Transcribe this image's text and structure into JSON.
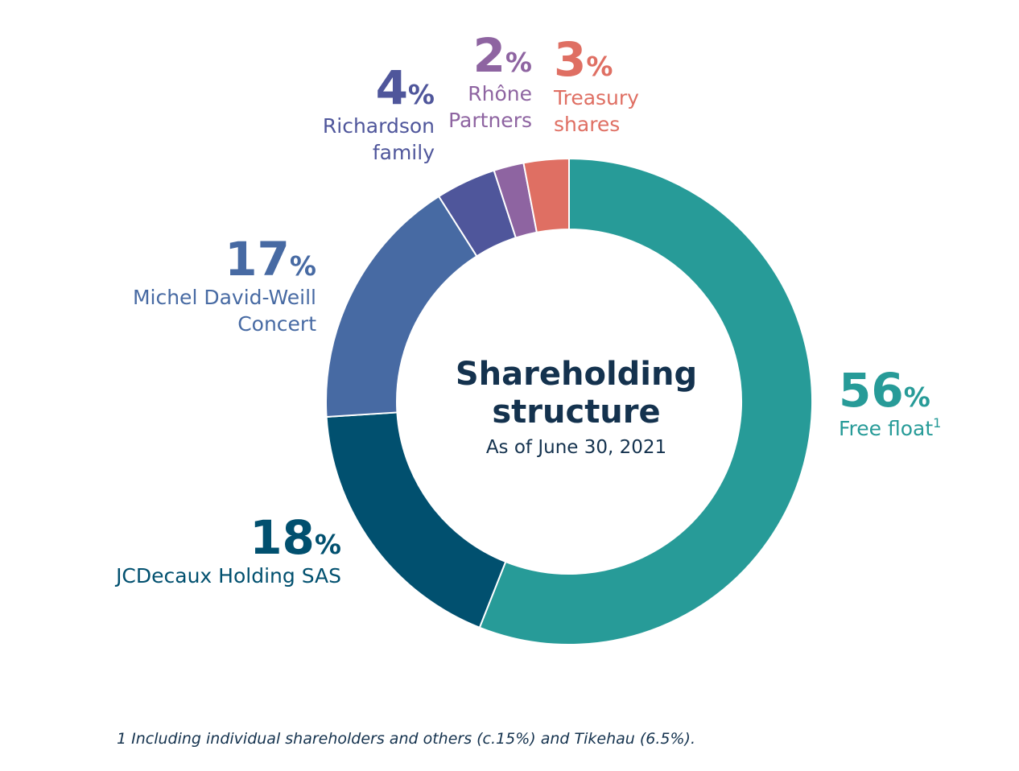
{
  "chart_data": {
    "type": "pie",
    "title": "Shareholding structure",
    "subtitle": "As of June 30, 2021",
    "slices": [
      {
        "value": 56,
        "pct_number": "56",
        "pct_sign": "%",
        "label_lines": [
          "Free float"
        ],
        "superscript": "1",
        "color": "#279b98"
      },
      {
        "value": 18,
        "pct_number": "18",
        "pct_sign": "%",
        "label_lines": [
          "JCDecaux Holding SAS"
        ],
        "superscript": "",
        "color": "#01506f"
      },
      {
        "value": 17,
        "pct_number": "17",
        "pct_sign": "%",
        "label_lines": [
          "Michel David-Weill",
          "Concert"
        ],
        "superscript": "",
        "color": "#476aa3"
      },
      {
        "value": 4,
        "pct_number": "4",
        "pct_sign": "%",
        "label_lines": [
          "Richardson",
          "family"
        ],
        "superscript": "",
        "color": "#4f569b"
      },
      {
        "value": 2,
        "pct_number": "2",
        "pct_sign": "%",
        "label_lines": [
          "Rhône",
          "Partners"
        ],
        "superscript": "",
        "color": "#8e64a1"
      },
      {
        "value": 3,
        "pct_number": "3",
        "pct_sign": "%",
        "label_lines": [
          "Treasury",
          "shares"
        ],
        "superscript": "",
        "color": "#df6f63"
      }
    ]
  },
  "footnote": "1 Including individual shareholders and others (c.15%) and Tikehau (6.5%)."
}
